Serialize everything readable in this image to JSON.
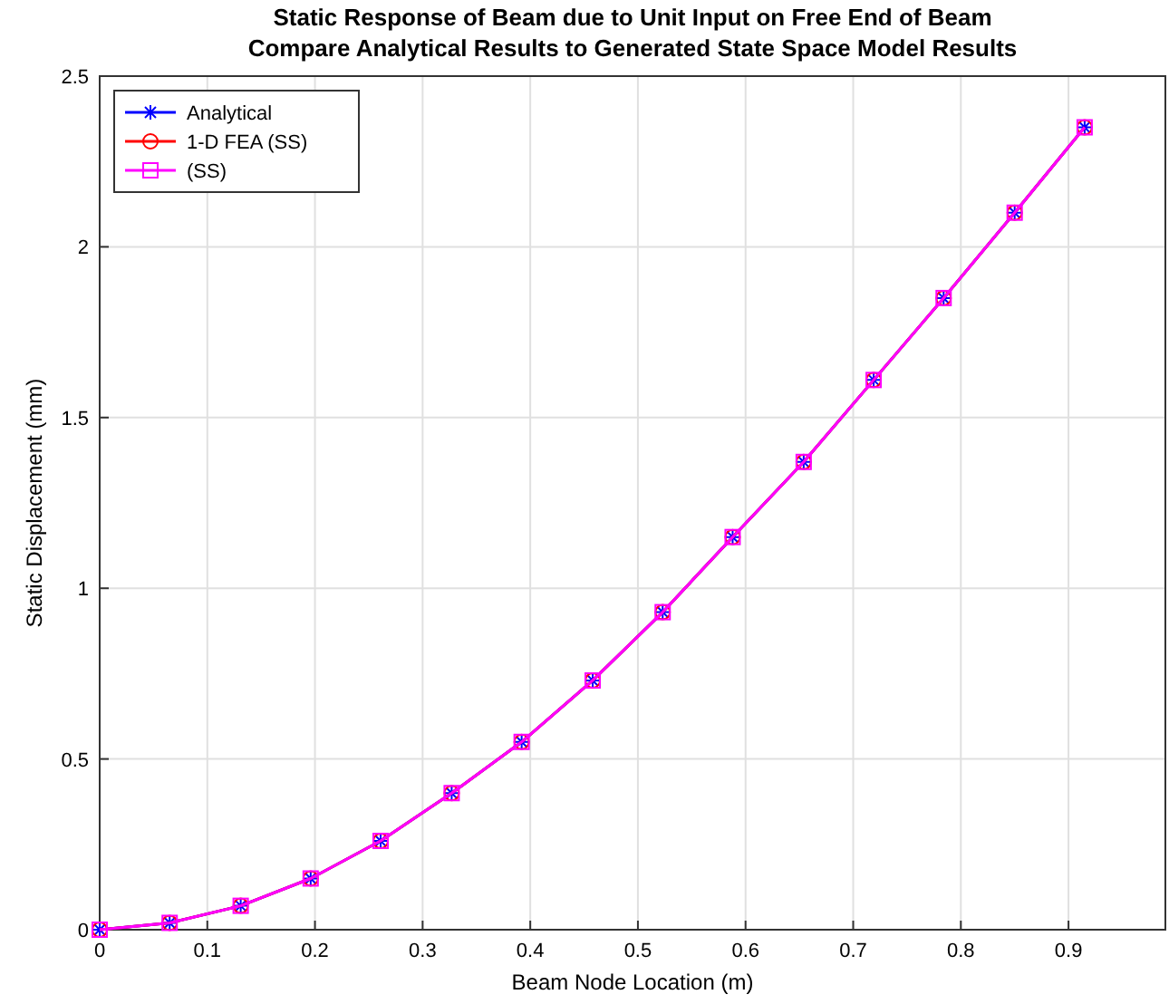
{
  "chart_data": {
    "type": "line",
    "title": "Static Response of Beam due to Unit Input on Free End of Beam\nCompare Analytical Results to Generated State Space Model Results",
    "xlabel": "Beam Node Location (m)",
    "ylabel": "Static Displacement (mm)",
    "x": [
      0,
      0.065,
      0.131,
      0.196,
      0.261,
      0.327,
      0.392,
      0.458,
      0.523,
      0.588,
      0.654,
      0.719,
      0.784,
      0.85,
      0.915
    ],
    "series": [
      {
        "name": "Analytical",
        "color": "#0000ff",
        "marker": "cross",
        "values": [
          0,
          0.02,
          0.07,
          0.15,
          0.26,
          0.4,
          0.55,
          0.73,
          0.93,
          1.15,
          1.37,
          1.61,
          1.85,
          2.1,
          2.35
        ]
      },
      {
        "name": "1-D FEA (SS)",
        "color": "#ff0000",
        "marker": "circle",
        "values": [
          0,
          0.02,
          0.07,
          0.15,
          0.26,
          0.4,
          0.55,
          0.73,
          0.93,
          1.15,
          1.37,
          1.61,
          1.85,
          2.1,
          2.35
        ]
      },
      {
        "name": "(SS)",
        "color": "#ff00ff",
        "marker": "square",
        "values": [
          0,
          0.02,
          0.07,
          0.15,
          0.26,
          0.4,
          0.55,
          0.73,
          0.93,
          1.15,
          1.37,
          1.61,
          1.85,
          2.1,
          2.35
        ]
      }
    ],
    "xlim": [
      0,
      0.99
    ],
    "xticks": [
      0,
      0.1,
      0.2,
      0.3,
      0.4,
      0.5,
      0.6,
      0.7,
      0.8,
      0.9
    ],
    "ylim": [
      0,
      2.5
    ],
    "yticks": [
      0,
      0.5,
      1,
      1.5,
      2,
      2.5
    ],
    "grid": true,
    "legend": "top left",
    "line_style": "solid"
  }
}
